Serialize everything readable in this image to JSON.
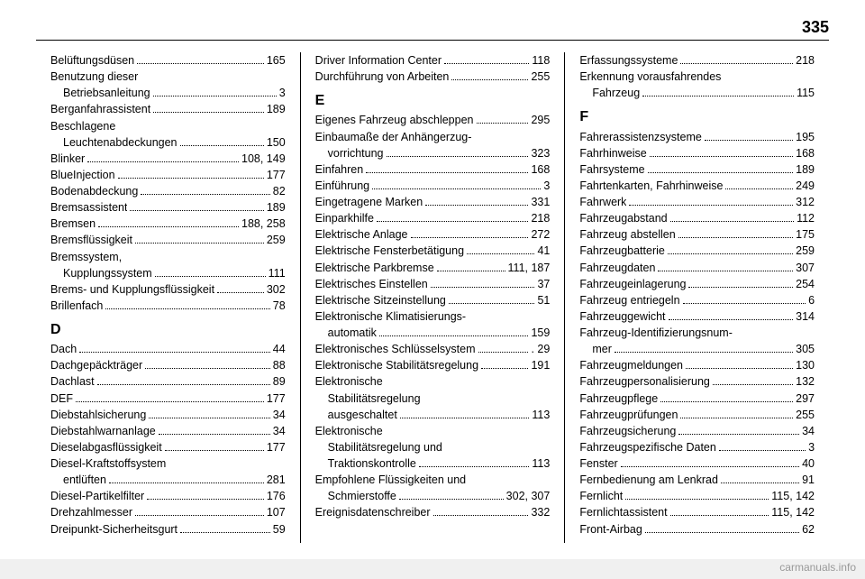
{
  "page_number": "335",
  "watermark": "carmanuals.info",
  "columns": [
    [
      {
        "t": "e",
        "label": "Belüftungsdüsen",
        "page": "165"
      },
      {
        "t": "l",
        "label": "Benutzung dieser"
      },
      {
        "t": "e",
        "indent": true,
        "label": "Betriebsanleitung",
        "page": "3"
      },
      {
        "t": "e",
        "label": "Berganfahrassistent",
        "page": "189"
      },
      {
        "t": "l",
        "label": "Beschlagene"
      },
      {
        "t": "e",
        "indent": true,
        "label": "Leuchtenabdeckungen",
        "page": "150"
      },
      {
        "t": "e",
        "label": "Blinker",
        "page": "108, 149"
      },
      {
        "t": "e",
        "label": "BlueInjection",
        "page": "177"
      },
      {
        "t": "e",
        "label": "Bodenabdeckung",
        "page": "82"
      },
      {
        "t": "e",
        "label": "Bremsassistent",
        "page": "189"
      },
      {
        "t": "e",
        "label": "Bremsen",
        "page": "188, 258"
      },
      {
        "t": "e",
        "label": "Bremsflüssigkeit",
        "page": "259"
      },
      {
        "t": "l",
        "label": "Bremssystem,"
      },
      {
        "t": "e",
        "indent": true,
        "label": "Kupplungssystem",
        "page": "111"
      },
      {
        "t": "e",
        "label": "Brems- und Kupplungsflüssigkeit",
        "page": "302"
      },
      {
        "t": "e",
        "label": "Brillenfach",
        "page": "78"
      },
      {
        "t": "h",
        "label": "D"
      },
      {
        "t": "e",
        "label": "Dach",
        "page": "44"
      },
      {
        "t": "e",
        "label": "Dachgepäckträger",
        "page": "88"
      },
      {
        "t": "e",
        "label": "Dachlast",
        "page": "89"
      },
      {
        "t": "e",
        "label": "DEF",
        "page": "177"
      },
      {
        "t": "e",
        "label": "Diebstahlsicherung",
        "page": "34"
      },
      {
        "t": "e",
        "label": "Diebstahlwarnanlage",
        "page": "34"
      },
      {
        "t": "e",
        "label": "Dieselabgasflüssigkeit",
        "page": "177"
      },
      {
        "t": "l",
        "label": "Diesel-Kraftstoffsystem"
      },
      {
        "t": "e",
        "indent": true,
        "label": "entlüften",
        "page": "281"
      },
      {
        "t": "e",
        "label": "Diesel-Partikelfilter",
        "page": "176"
      },
      {
        "t": "e",
        "label": "Drehzahlmesser",
        "page": "107"
      },
      {
        "t": "e",
        "label": "Dreipunkt-Sicherheitsgurt",
        "page": "59"
      }
    ],
    [
      {
        "t": "e",
        "label": "Driver Information Center",
        "page": "118"
      },
      {
        "t": "e",
        "label": "Durchführung von Arbeiten",
        "page": "255"
      },
      {
        "t": "h",
        "label": "E"
      },
      {
        "t": "e",
        "label": "Eigenes Fahrzeug abschleppen",
        "page": "295"
      },
      {
        "t": "l",
        "label": "Einbaumaße der Anhängerzug-"
      },
      {
        "t": "e",
        "indent": true,
        "label": "vorrichtung",
        "page": "323"
      },
      {
        "t": "e",
        "label": "Einfahren",
        "page": "168"
      },
      {
        "t": "e",
        "label": "Einführung",
        "page": "3"
      },
      {
        "t": "e",
        "label": "Eingetragene Marken",
        "page": "331"
      },
      {
        "t": "e",
        "label": "Einparkhilfe",
        "page": "218"
      },
      {
        "t": "e",
        "label": "Elektrische Anlage",
        "page": "272"
      },
      {
        "t": "e",
        "label": "Elektrische Fensterbetätigung",
        "page": "41"
      },
      {
        "t": "e",
        "label": "Elektrische Parkbremse",
        "page": "111, 187"
      },
      {
        "t": "e",
        "label": "Elektrisches Einstellen",
        "page": "37"
      },
      {
        "t": "e",
        "label": "Elektrische Sitzeinstellung",
        "page": "51"
      },
      {
        "t": "l",
        "label": "Elektronische Klimatisierungs-"
      },
      {
        "t": "e",
        "indent": true,
        "label": "automatik",
        "page": "159"
      },
      {
        "t": "e",
        "label": "Elektronisches Schlüsselsystem",
        "page": ". 29"
      },
      {
        "t": "e",
        "label": "Elektronische Stabilitätsregelung",
        "page": "191"
      },
      {
        "t": "l",
        "label": "Elektronische"
      },
      {
        "t": "l",
        "indent": true,
        "label": "Stabilitätsregelung"
      },
      {
        "t": "e",
        "indent": true,
        "label": "ausgeschaltet",
        "page": "113"
      },
      {
        "t": "l",
        "label": "Elektronische"
      },
      {
        "t": "l",
        "indent": true,
        "label": "Stabilitätsregelung und"
      },
      {
        "t": "e",
        "indent": true,
        "label": "Traktionskontrolle",
        "page": "113"
      },
      {
        "t": "l",
        "label": "Empfohlene Flüssigkeiten und"
      },
      {
        "t": "e",
        "indent": true,
        "label": "Schmierstoffe",
        "page": "302, 307"
      },
      {
        "t": "e",
        "label": "Ereignisdatenschreiber",
        "page": "332"
      }
    ],
    [
      {
        "t": "e",
        "label": "Erfassungssysteme",
        "page": "218"
      },
      {
        "t": "l",
        "label": "Erkennung vorausfahrendes"
      },
      {
        "t": "e",
        "indent": true,
        "label": "Fahrzeug",
        "page": "115"
      },
      {
        "t": "h",
        "label": "F"
      },
      {
        "t": "e",
        "label": "Fahrerassistenzsysteme",
        "page": "195"
      },
      {
        "t": "e",
        "label": "Fahrhinweise",
        "page": "168"
      },
      {
        "t": "e",
        "label": "Fahrsysteme",
        "page": "189"
      },
      {
        "t": "e",
        "label": "Fahrtenkarten, Fahrhinweise",
        "page": "249"
      },
      {
        "t": "e",
        "label": "Fahrwerk",
        "page": "312"
      },
      {
        "t": "e",
        "label": "Fahrzeugabstand",
        "page": "112"
      },
      {
        "t": "e",
        "label": "Fahrzeug abstellen",
        "page": "175"
      },
      {
        "t": "e",
        "label": "Fahrzeugbatterie",
        "page": "259"
      },
      {
        "t": "e",
        "label": "Fahrzeugdaten",
        "page": "307"
      },
      {
        "t": "e",
        "label": "Fahrzeugeinlagerung",
        "page": "254"
      },
      {
        "t": "e",
        "label": "Fahrzeug entriegeln",
        "page": "6"
      },
      {
        "t": "e",
        "label": "Fahrzeuggewicht",
        "page": "314"
      },
      {
        "t": "l",
        "label": "Fahrzeug-Identifizierungsnum-"
      },
      {
        "t": "e",
        "indent": true,
        "label": "mer",
        "page": "305"
      },
      {
        "t": "e",
        "label": "Fahrzeugmeldungen",
        "page": "130"
      },
      {
        "t": "e",
        "label": "Fahrzeugpersonalisierung",
        "page": "132"
      },
      {
        "t": "e",
        "label": "Fahrzeugpflege",
        "page": "297"
      },
      {
        "t": "e",
        "label": "Fahrzeugprüfungen",
        "page": "255"
      },
      {
        "t": "e",
        "label": "Fahrzeugsicherung",
        "page": "34"
      },
      {
        "t": "e",
        "label": "Fahrzeugspezifische Daten",
        "page": "3"
      },
      {
        "t": "e",
        "label": "Fenster",
        "page": "40"
      },
      {
        "t": "e",
        "label": "Fernbedienung am Lenkrad",
        "page": "91"
      },
      {
        "t": "e",
        "label": "Fernlicht",
        "page": "115, 142"
      },
      {
        "t": "e",
        "label": "Fernlichtassistent",
        "page": "115, 142"
      },
      {
        "t": "e",
        "label": "Front-Airbag",
        "page": "62"
      }
    ]
  ]
}
